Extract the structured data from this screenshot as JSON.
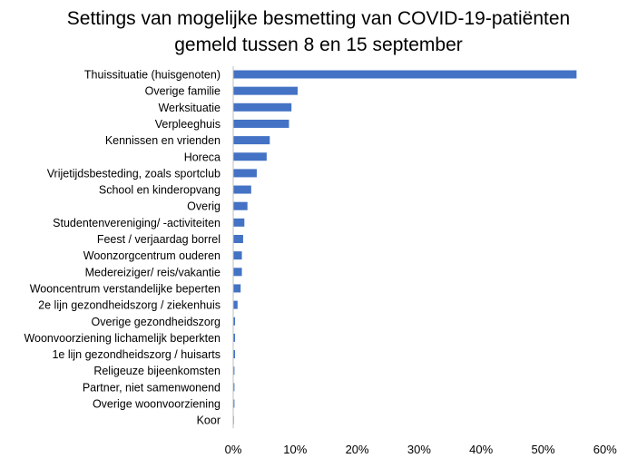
{
  "chart_data": {
    "type": "bar",
    "orientation": "horizontal",
    "title_lines": [
      "Settings van mogelijke besmetting van COVID-19-patiënten",
      "gemeld tussen 8 en 15 september"
    ],
    "categories": [
      "Thuissituatie (huisgenoten)",
      "Overige familie",
      "Werksituatie",
      "Verpleeghuis",
      "Kennissen en vrienden",
      "Horeca",
      "Vrijetijdsbesteding, zoals sportclub",
      "School en kinderopvang",
      "Overig",
      "Studentenvereniging/ -activiteiten",
      "Feest / verjaardag borrel",
      "Woonzorgcentrum ouderen",
      "Medereiziger/ reis/vakantie",
      "Wooncentrum verstandelijke beperten",
      "2e lijn gezondheidszorg / ziekenhuis",
      "Overige gezondheidszorg",
      "Woonvoorziening lichamelijk beperkten",
      "1e lijn gezondheidszorg / huisarts",
      "Religeuze bijeenkomsten",
      "Partner, niet samenwonend",
      "Overige woonvoorziening",
      "Koor"
    ],
    "values": [
      55.4,
      10.4,
      9.4,
      9.0,
      5.9,
      5.4,
      3.8,
      2.9,
      2.3,
      1.8,
      1.6,
      1.4,
      1.4,
      1.2,
      0.7,
      0.3,
      0.3,
      0.3,
      0.2,
      0.2,
      0.2,
      0.1
    ],
    "xlim": [
      0,
      60
    ],
    "xticks": [
      0,
      10,
      20,
      30,
      40,
      50,
      60
    ],
    "xtick_labels": [
      "0%",
      "10%",
      "20%",
      "30%",
      "40%",
      "50%",
      "60%"
    ],
    "value_unit": "%",
    "bar_color": "#4472c4",
    "grid": false,
    "legend": "none"
  }
}
